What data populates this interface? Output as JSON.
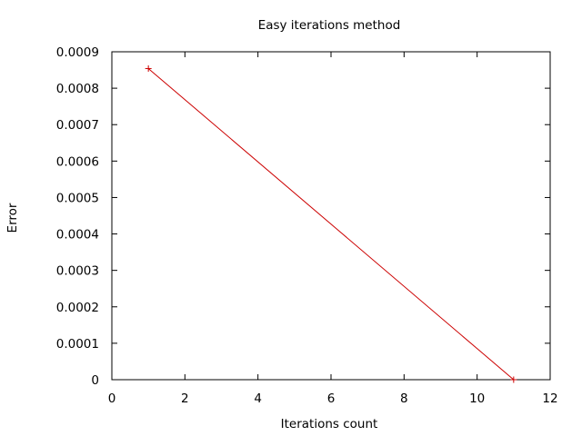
{
  "chart_data": {
    "type": "line",
    "title": "Easy iterations method",
    "xlabel": "Iterations count",
    "ylabel": "Error",
    "xlim": [
      0,
      12
    ],
    "ylim": [
      0,
      0.0009
    ],
    "xticks": [
      0,
      2,
      4,
      6,
      8,
      10,
      12
    ],
    "xtick_labels": [
      "0",
      "2",
      "4",
      "6",
      "8",
      "10",
      "12"
    ],
    "yticks": [
      0,
      0.0001,
      0.0002,
      0.0003,
      0.0004,
      0.0005,
      0.0006,
      0.0007,
      0.0008,
      0.0009
    ],
    "ytick_labels": [
      "0",
      "0.0001",
      "0.0002",
      "0.0003",
      "0.0004",
      "0.0005",
      "0.0006",
      "0.0007",
      "0.0008",
      "0.0009"
    ],
    "grid": false,
    "legend": "none",
    "series": [
      {
        "x": [
          1,
          11
        ],
        "y": [
          0.000854,
          0.0
        ],
        "color": "#cc0000",
        "marker": "plus"
      }
    ]
  }
}
